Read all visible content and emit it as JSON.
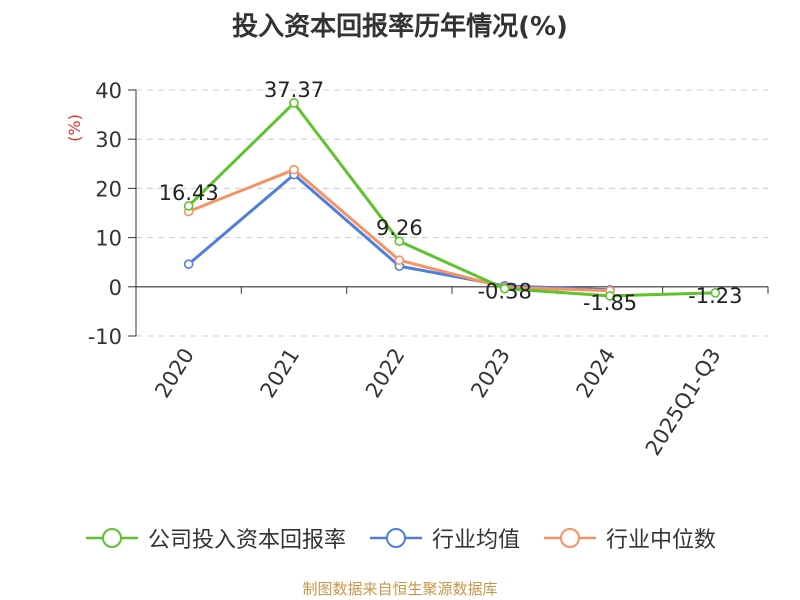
{
  "page": {
    "title": "投入资本回报率历年情况(%)",
    "source_note": "制图数据来自恒生聚源数据库"
  },
  "chart_data": {
    "type": "line",
    "title": "投入资本回报率历年情况(%)",
    "ylabel": "(%)",
    "xlabel": "",
    "categories": [
      "2020",
      "2021",
      "2022",
      "2023",
      "2024",
      "2025Q1-Q3"
    ],
    "ylim": [
      -10,
      40
    ],
    "yticks": [
      -10,
      0,
      10,
      20,
      30,
      40
    ],
    "grid": true,
    "legend_position": "bottom",
    "series": [
      {
        "name": "公司投入资本回报率",
        "color": "#5ec32f",
        "values": [
          16.43,
          37.37,
          9.26,
          -0.38,
          -1.85,
          -1.23
        ],
        "labels": [
          "16.43",
          "37.37",
          "9.26",
          "-0.38",
          "-1.85",
          "-1.23"
        ]
      },
      {
        "name": "行业均值",
        "color": "#4f7fdb",
        "values": [
          4.6,
          22.8,
          4.2,
          0.2,
          -0.6,
          null
        ]
      },
      {
        "name": "行业中位数",
        "color": "#f59363",
        "values": [
          15.3,
          23.8,
          5.4,
          -0.1,
          -0.8,
          null
        ]
      }
    ]
  }
}
